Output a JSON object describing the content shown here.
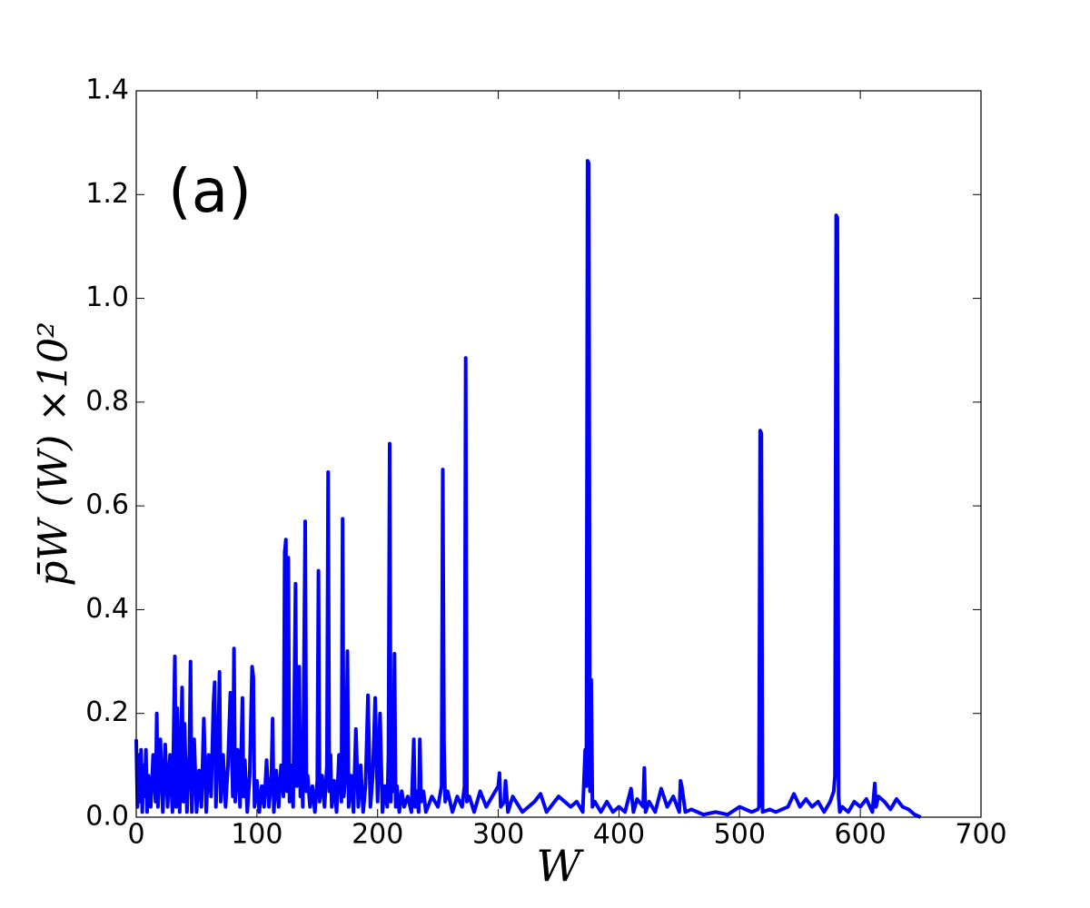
{
  "chart_data": {
    "type": "line",
    "annotation": "(a)",
    "xlabel": "W",
    "ylabel": "p̄W (W) ×10²",
    "color": "#0000ff",
    "xlim": [
      0,
      700
    ],
    "xticks": [
      0,
      100,
      200,
      300,
      400,
      500,
      600,
      700
    ],
    "ylim": [
      0,
      1.4
    ],
    "yticks": [
      {
        "value": 0,
        "label": "0.0"
      },
      0.2,
      0.4,
      0.6,
      0.8,
      {
        "value": 1,
        "label": "1.0"
      },
      1.2,
      1.4
    ],
    "x": [
      0,
      1,
      2,
      3,
      4,
      5,
      6,
      7,
      8,
      9,
      10,
      12,
      14,
      16,
      17,
      18,
      20,
      22,
      24,
      26,
      28,
      30,
      31,
      32,
      33,
      34,
      36,
      38,
      39,
      40,
      42,
      44,
      45,
      46,
      48,
      50,
      52,
      54,
      56,
      58,
      60,
      62,
      64,
      65,
      66,
      68,
      69,
      70,
      72,
      74,
      76,
      78,
      80,
      81,
      82,
      84,
      86,
      88,
      89,
      90,
      92,
      94,
      96,
      97,
      98,
      100,
      102,
      104,
      106,
      108,
      110,
      112,
      113,
      114,
      116,
      118,
      120,
      122,
      123,
      124,
      125,
      126,
      127,
      128,
      130,
      132,
      133,
      134,
      135,
      136,
      137,
      138,
      140,
      141,
      142,
      144,
      146,
      148,
      150,
      151,
      152,
      154,
      156,
      158,
      159,
      160,
      161,
      162,
      164,
      166,
      168,
      170,
      171,
      172,
      174,
      175,
      176,
      178,
      180,
      182,
      184,
      186,
      188,
      190,
      192,
      194,
      196,
      198,
      200,
      202,
      204,
      206,
      208,
      209,
      210,
      211,
      212,
      213,
      214,
      215,
      216,
      218,
      220,
      222,
      225,
      228,
      230,
      231,
      232,
      234,
      235,
      236,
      238,
      240,
      245,
      250,
      253,
      254,
      255,
      256,
      258,
      262,
      266,
      270,
      272,
      273,
      274,
      276,
      280,
      285,
      290,
      295,
      300,
      301,
      302,
      305,
      306,
      308,
      312,
      320,
      330,
      335,
      340,
      350,
      360,
      365,
      370,
      372,
      373,
      374,
      375,
      376,
      377,
      378,
      380,
      385,
      390,
      395,
      400,
      405,
      410,
      412,
      415,
      420,
      421,
      422,
      425,
      430,
      435,
      440,
      445,
      450,
      451,
      452,
      455,
      460,
      470,
      480,
      490,
      500,
      510,
      515,
      516,
      517,
      518,
      519,
      525,
      530,
      540,
      545,
      550,
      555,
      560,
      565,
      570,
      575,
      578,
      579,
      580,
      581,
      582,
      583,
      585,
      590,
      595,
      600,
      605,
      610,
      612,
      613,
      615,
      620,
      625,
      630,
      635,
      640,
      645,
      650
    ],
    "values": [
      0.15,
      0.02,
      0.12,
      0.03,
      0.13,
      0.01,
      0.1,
      0.04,
      0.13,
      0.01,
      0.08,
      0.02,
      0.12,
      0.03,
      0.2,
      0.02,
      0.15,
      0.01,
      0.14,
      0.02,
      0.12,
      0.01,
      0.16,
      0.31,
      0.02,
      0.21,
      0.01,
      0.25,
      0.03,
      0.18,
      0.01,
      0.12,
      0.3,
      0.01,
      0.15,
      0.01,
      0.09,
      0.02,
      0.19,
      0.01,
      0.12,
      0.04,
      0.22,
      0.26,
      0.02,
      0.15,
      0.28,
      0.03,
      0.12,
      0.02,
      0.1,
      0.24,
      0.04,
      0.325,
      0.03,
      0.13,
      0.02,
      0.23,
      0.04,
      0.11,
      0.01,
      0.08,
      0.29,
      0.27,
      0.02,
      0.07,
      0.01,
      0.06,
      0.02,
      0.11,
      0.02,
      0.08,
      0.19,
      0.01,
      0.09,
      0.02,
      0.1,
      0.04,
      0.51,
      0.535,
      0.05,
      0.5,
      0.03,
      0.1,
      0.02,
      0.45,
      0.06,
      0.1,
      0.29,
      0.04,
      0.11,
      0.02,
      0.57,
      0.05,
      0.08,
      0.02,
      0.06,
      0.01,
      0.07,
      0.475,
      0.03,
      0.08,
      0.02,
      0.1,
      0.665,
      0.05,
      0.12,
      0.02,
      0.07,
      0.01,
      0.12,
      0.03,
      0.575,
      0.04,
      0.1,
      0.32,
      0.02,
      0.08,
      0.01,
      0.17,
      0.02,
      0.1,
      0.01,
      0.06,
      0.235,
      0.02,
      0.08,
      0.23,
      0.03,
      0.2,
      0.01,
      0.06,
      0.02,
      0.12,
      0.72,
      0.03,
      0.12,
      0.05,
      0.315,
      0.02,
      0.06,
      0.01,
      0.05,
      0.02,
      0.04,
      0.01,
      0.15,
      0.02,
      0.05,
      0.01,
      0.15,
      0.03,
      0.05,
      0.01,
      0.04,
      0.02,
      0.06,
      0.67,
      0.145,
      0.03,
      0.05,
      0.01,
      0.04,
      0.02,
      0.06,
      0.885,
      0.03,
      0.04,
      0.01,
      0.05,
      0.02,
      0.04,
      0.06,
      0.085,
      0.02,
      0.03,
      0.07,
      0.01,
      0.04,
      0.01,
      0.03,
      0.045,
      0.01,
      0.04,
      0.02,
      0.03,
      0.01,
      0.13,
      0.06,
      1.265,
      1.26,
      0.05,
      0.265,
      0.02,
      0.03,
      0.01,
      0.03,
      0.01,
      0.02,
      0.01,
      0.055,
      0.01,
      0.035,
      0.02,
      0.095,
      0.01,
      0.03,
      0.01,
      0.055,
      0.02,
      0.04,
      0.01,
      0.07,
      0.06,
      0.01,
      0.015,
      0.005,
      0.01,
      0.005,
      0.02,
      0.01,
      0.015,
      0.02,
      0.745,
      0.74,
      0.01,
      0.015,
      0.01,
      0.02,
      0.045,
      0.02,
      0.035,
      0.02,
      0.03,
      0.01,
      0.03,
      0.05,
      0.08,
      1.16,
      1.155,
      0.04,
      0.01,
      0.02,
      0.01,
      0.03,
      0.02,
      0.035,
      0.01,
      0.065,
      0.02,
      0.04,
      0.03,
      0.015,
      0.035,
      0.02,
      0.015,
      0.005,
      0
    ]
  }
}
